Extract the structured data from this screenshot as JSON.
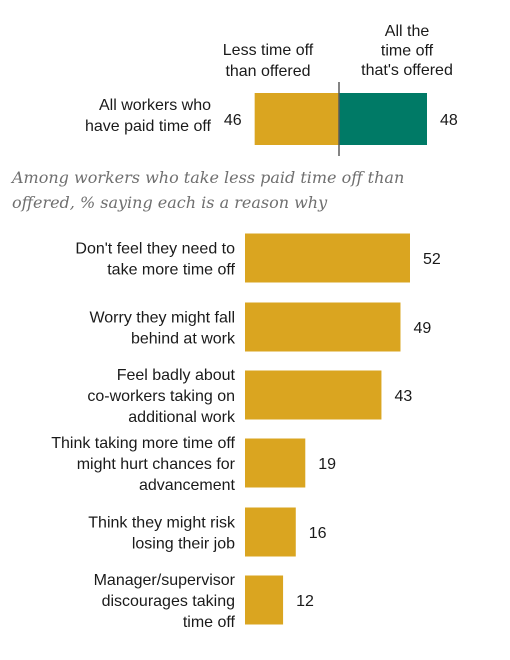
{
  "colors": {
    "gold": "#DAA520",
    "teal": "#007A66",
    "divider": "#5a5a5a",
    "subtitle": "#6f6f6f"
  },
  "chart_data": [
    {
      "type": "bar",
      "orientation": "horizontal-diverging",
      "categories": [
        "All workers who have paid time off"
      ],
      "series": [
        {
          "name": "Less time off than offered",
          "values": [
            46
          ]
        },
        {
          "name": "All the time off that's offered",
          "values": [
            48
          ]
        }
      ]
    },
    {
      "type": "bar",
      "orientation": "horizontal",
      "subtitle": "Among workers who take less paid time off than offered, % saying each is a reason why",
      "categories": [
        "Don't feel they need to take more time off",
        "Worry they might fall behind at work",
        "Feel badly about co-workers taking on additional work",
        "Think taking more time off might hurt chances for advancement",
        "Think they might risk losing their job",
        "Manager/supervisor discourages taking time off"
      ],
      "values": [
        52,
        49,
        43,
        19,
        16,
        12
      ]
    }
  ],
  "top": {
    "header_left": [
      "Less time off",
      "than offered"
    ],
    "header_right": [
      "All the",
      "time off",
      "that's offered"
    ],
    "row_label": [
      "All workers who",
      "have paid time off"
    ]
  },
  "reasons": {
    "subtitle_lines": [
      "Among workers who take less paid time off than",
      "offered, % saying each is a reason why"
    ],
    "label_lines": [
      [
        "Don't feel they need to",
        "take more time off"
      ],
      [
        "Worry they might fall",
        "behind at work"
      ],
      [
        "Feel badly about",
        "co-workers taking on",
        "additional work"
      ],
      [
        "Think taking more time off",
        "might hurt chances for",
        "advancement"
      ],
      [
        "Think they might risk",
        "losing their job"
      ],
      [
        "Manager/supervisor",
        "discourages taking",
        "time off"
      ]
    ]
  }
}
